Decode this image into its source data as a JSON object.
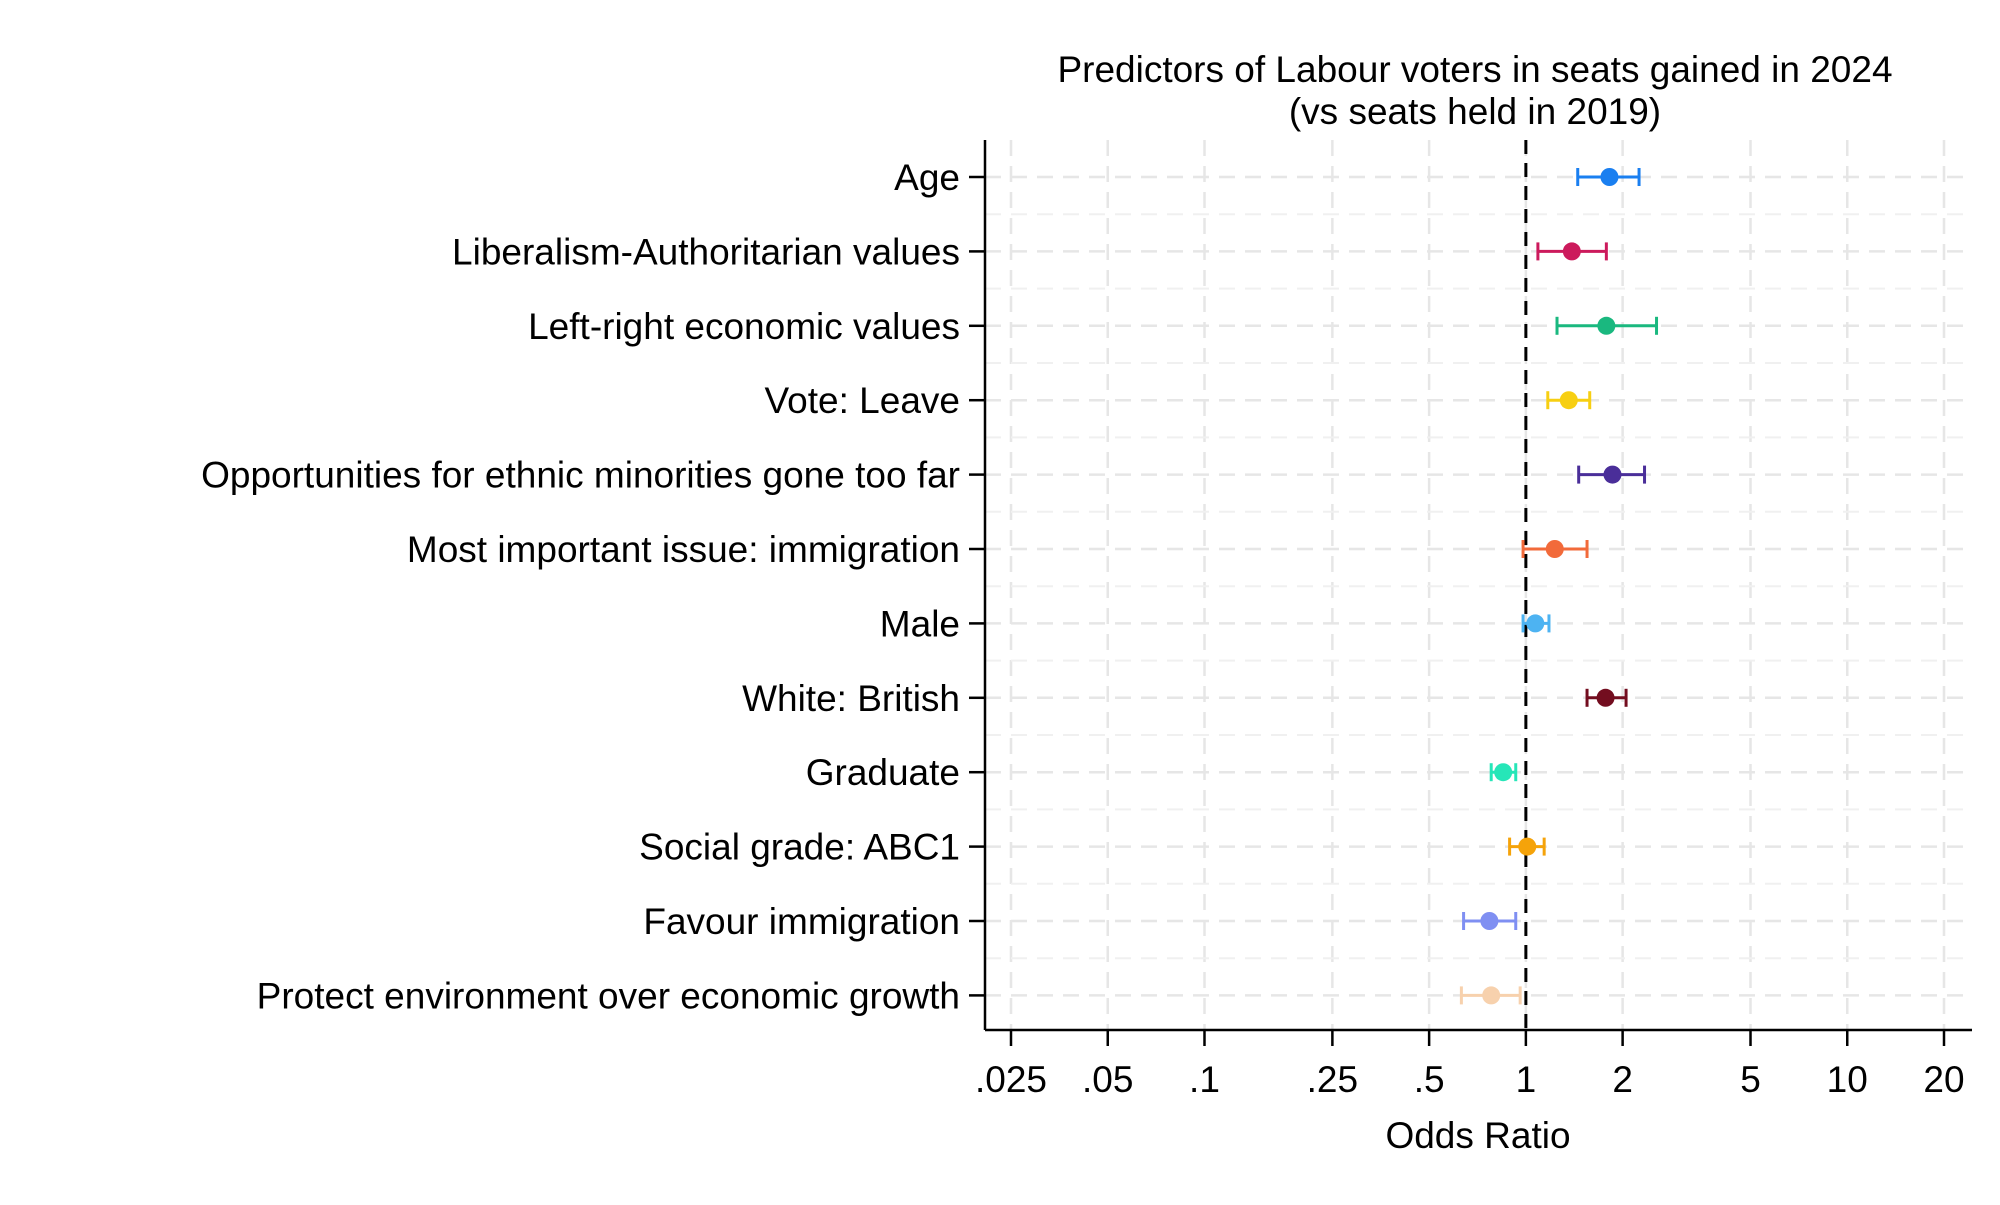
{
  "chart_data": {
    "type": "scatter",
    "subtype": "coefficient-plot",
    "title": "Predictors of Labour voters in seats gained in 2024",
    "subtitle": "(vs seats held in 2019)",
    "xlabel": "Odds Ratio",
    "ylabel": "",
    "xscale": "log",
    "xlim": [
      0.02,
      25
    ],
    "x_ticks": [
      0.025,
      0.05,
      0.1,
      0.25,
      0.5,
      1,
      2,
      5,
      10,
      20
    ],
    "x_tick_labels": [
      ".025",
      ".05",
      ".1",
      ".25",
      ".5",
      "1",
      "2",
      "5",
      "10",
      "20"
    ],
    "reference_line": 1,
    "grid": true,
    "series": [
      {
        "name": "Age",
        "estimate": 1.82,
        "ci_low": 1.45,
        "ci_high": 2.25,
        "color": "#1a7ff0"
      },
      {
        "name": "Liberalism-Authoritarian values",
        "estimate": 1.39,
        "ci_low": 1.09,
        "ci_high": 1.78,
        "color": "#cc1a5c"
      },
      {
        "name": "Left-right economic values",
        "estimate": 1.78,
        "ci_low": 1.25,
        "ci_high": 2.55,
        "color": "#1ab87f"
      },
      {
        "name": "Vote: Leave",
        "estimate": 1.36,
        "ci_low": 1.17,
        "ci_high": 1.58,
        "color": "#f7cf12"
      },
      {
        "name": "Opportunities for ethnic minorities gone too far",
        "estimate": 1.86,
        "ci_low": 1.46,
        "ci_high": 2.34,
        "color": "#4a2e99"
      },
      {
        "name": "Most important issue: immigration",
        "estimate": 1.23,
        "ci_low": 0.98,
        "ci_high": 1.55,
        "color": "#f26a3a"
      },
      {
        "name": "Male",
        "estimate": 1.07,
        "ci_low": 0.98,
        "ci_high": 1.18,
        "color": "#4db3f2"
      },
      {
        "name": "White: British",
        "estimate": 1.77,
        "ci_low": 1.55,
        "ci_high": 2.05,
        "color": "#730d1f"
      },
      {
        "name": "Graduate",
        "estimate": 0.85,
        "ci_low": 0.78,
        "ci_high": 0.93,
        "color": "#26e6b8"
      },
      {
        "name": "Social grade: ABC1",
        "estimate": 1.01,
        "ci_low": 0.89,
        "ci_high": 1.14,
        "color": "#f5a30a"
      },
      {
        "name": "Favour immigration",
        "estimate": 0.77,
        "ci_low": 0.64,
        "ci_high": 0.93,
        "color": "#7f8ff2"
      },
      {
        "name": "Protect environment over economic growth",
        "estimate": 0.78,
        "ci_low": 0.63,
        "ci_high": 0.96,
        "color": "#f7d1ad"
      }
    ]
  }
}
